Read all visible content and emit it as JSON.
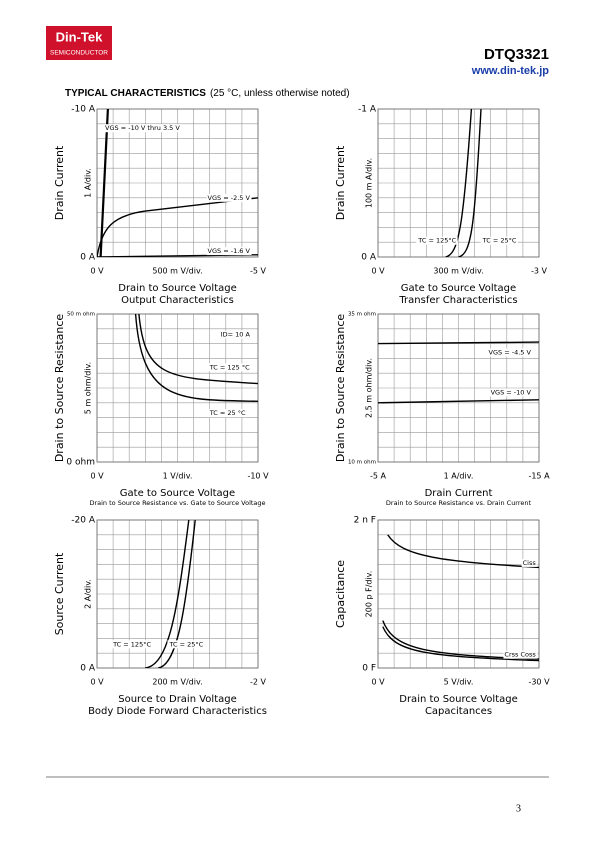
{
  "header": {
    "logo": "Din-Tek",
    "logo_sub": "SEMICONDUCTOR",
    "part": "DTQ3321",
    "url": "www.din-tek.jp"
  },
  "section": {
    "title": "TYPICAL CHARACTERISTICS",
    "note": "(25 °C, unless otherwise noted)"
  },
  "charts": [
    {
      "y_top": "-10  A",
      "y_bottom": "0  A",
      "y_title": "Drain Current",
      "y_div": "1  A/div.",
      "x_left": "0  V",
      "x_mid": "500 m V/div.",
      "x_right": "-5  V",
      "x_title": "Drain to Source Voltage",
      "caption": "Output Characteristics",
      "annotations": [
        "VGS = -10 V thru 3.5 V",
        "VGS = -2.5 V",
        "VGS = -1.6 V"
      ]
    },
    {
      "y_top": "-1  A",
      "y_bottom": "0  A",
      "y_title": "Drain Current",
      "y_div": "100 m A/div.",
      "x_left": "0  V",
      "x_mid": "300 m V/div.",
      "x_right": "-3  V",
      "x_title": "Gate to Source Voltage",
      "caption": "Transfer Characteristics",
      "annotations": [
        "TC = 125°C",
        "TC = 25°C"
      ]
    },
    {
      "y_top": "50 m ohm",
      "y_bottom": "0  ohm",
      "y_title": "Drain to Source Resistance",
      "y_div": "5 m ohm/div.",
      "x_left": "0  V",
      "x_mid": "1  V/div.",
      "x_right": "-10  V",
      "x_title": "Gate to Source Voltage",
      "caption": "Drain to Source Resistance vs. Gate to Source Voltage",
      "annotations": [
        "ID= 10 A",
        "TC = 125 °C",
        "TC = 25 °C"
      ]
    },
    {
      "y_top": "35 m ohm",
      "y_bottom": "10 m ohm",
      "y_title": "Drain to Source Resistance",
      "y_div": "2.5 m ohm/div.",
      "x_left": "-5  A",
      "x_mid": "1 A/div.",
      "x_right": "-15  A",
      "x_title": "Drain Current",
      "caption": "Drain to Source Resistance vs. Drain Current",
      "annotations": [
        "VGS = -4.5 V",
        "VGS = -10 V"
      ]
    },
    {
      "y_top": "-20  A",
      "y_bottom": "0  A",
      "y_title": "Source Current",
      "y_div": "2  A/div.",
      "x_left": "0  V",
      "x_mid": "200 m V/div.",
      "x_right": "-2  V",
      "x_title": "Source to Drain Voltage",
      "caption": "Body Diode Forward Characteristics",
      "annotations": [
        "TC = 125°C",
        "TC = 25°C"
      ]
    },
    {
      "y_top": "2 n F",
      "y_bottom": "0  F",
      "y_title": "Capacitance",
      "y_div": "200 p F/div.",
      "x_left": "0  V",
      "x_mid": "5  V/div.",
      "x_right": "-30  V",
      "x_title": "Drain to Source Voltage",
      "caption": "Capacitances",
      "annotations": [
        "Ciss",
        "Crss Coss"
      ]
    }
  ],
  "footer": {
    "page": "3"
  }
}
